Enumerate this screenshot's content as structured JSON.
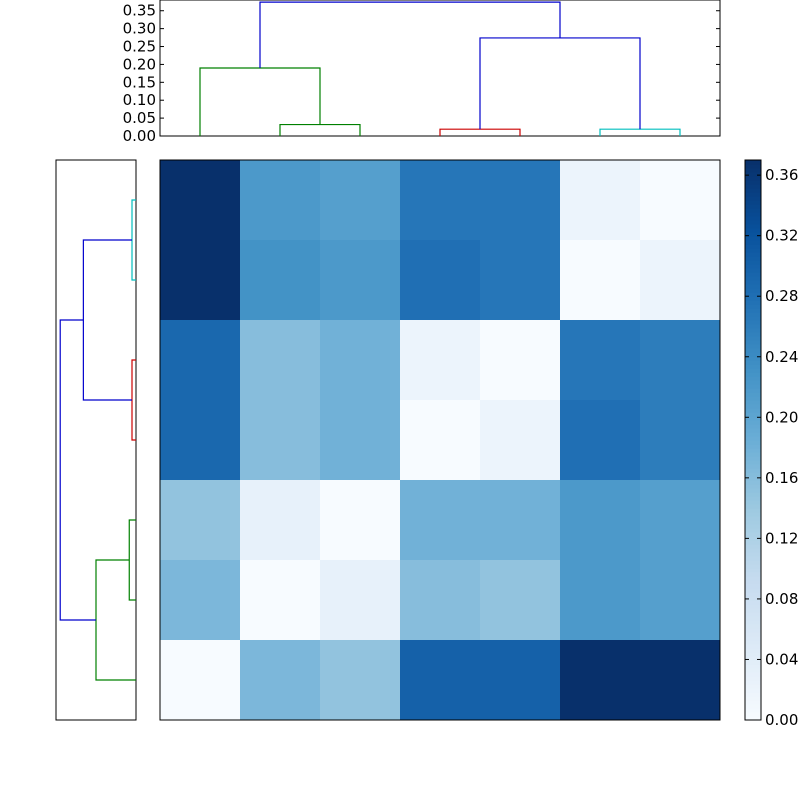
{
  "colors": {
    "dendrogram_link_colors": [
      "#0000cc",
      "#008000",
      "#cc0000",
      "#00bfbf"
    ],
    "cmap_low": "#f7fbff",
    "cmap_high": "#08306b"
  },
  "chart_data": [
    {
      "type": "heatmap",
      "title": "",
      "colormap": "Blues",
      "vmin": 0.0,
      "vmax": 0.37,
      "matrix": [
        [
          0.37,
          0.22,
          0.21,
          0.27,
          0.27,
          0.02,
          0.0
        ],
        [
          0.37,
          0.23,
          0.22,
          0.28,
          0.27,
          0.0,
          0.02
        ],
        [
          0.29,
          0.16,
          0.18,
          0.02,
          0.0,
          0.27,
          0.26
        ],
        [
          0.29,
          0.16,
          0.18,
          0.0,
          0.02,
          0.28,
          0.26
        ],
        [
          0.15,
          0.03,
          0.0,
          0.18,
          0.18,
          0.22,
          0.21
        ],
        [
          0.17,
          0.0,
          0.03,
          0.16,
          0.15,
          0.22,
          0.21
        ],
        [
          0.0,
          0.17,
          0.15,
          0.3,
          0.3,
          0.37,
          0.37
        ]
      ],
      "colorbar": {
        "ticks": [
          "0.00",
          "0.04",
          "0.08",
          "0.12",
          "0.16",
          "0.20",
          "0.24",
          "0.28",
          "0.32",
          "0.36"
        ],
        "tick_values": [
          0.0,
          0.04,
          0.08,
          0.12,
          0.16,
          0.2,
          0.24,
          0.28,
          0.32,
          0.36
        ]
      },
      "xlabel": "",
      "ylabel": ""
    },
    {
      "type": "line",
      "subtype": "dendrogram",
      "orientation": "top",
      "ylim": [
        0,
        0.38
      ],
      "yticks": [
        "0.00",
        "0.05",
        "0.10",
        "0.15",
        "0.20",
        "0.25",
        "0.30",
        "0.35"
      ],
      "ytick_values": [
        0.0,
        0.05,
        0.1,
        0.15,
        0.2,
        0.25,
        0.3,
        0.35
      ],
      "links": [
        {
          "left": 1.5,
          "right": 2.5,
          "h_left": 0.0,
          "h_right": 0.0,
          "height": 0.032,
          "color": "#008000"
        },
        {
          "left": 0.5,
          "right": 2.0,
          "h_left": 0.0,
          "h_right": 0.032,
          "height": 0.19,
          "color": "#008000"
        },
        {
          "left": 3.5,
          "right": 4.5,
          "h_left": 0.0,
          "h_right": 0.0,
          "height": 0.019,
          "color": "#cc0000"
        },
        {
          "left": 5.5,
          "right": 6.5,
          "h_left": 0.0,
          "h_right": 0.0,
          "height": 0.019,
          "color": "#00bfbf"
        },
        {
          "left": 4.0,
          "right": 6.0,
          "h_left": 0.019,
          "h_right": 0.019,
          "height": 0.274,
          "color": "#0000cc"
        },
        {
          "left": 1.25,
          "right": 5.0,
          "h_left": 0.19,
          "h_right": 0.274,
          "height": 0.374,
          "color": "#0000cc"
        }
      ]
    },
    {
      "type": "line",
      "subtype": "dendrogram",
      "orientation": "left",
      "links": [
        {
          "left": 0.5,
          "right": 1.5,
          "h_left": 0.0,
          "h_right": 0.0,
          "height": 0.019,
          "color": "#00bfbf"
        },
        {
          "left": 2.5,
          "right": 3.5,
          "h_left": 0.0,
          "h_right": 0.0,
          "height": 0.019,
          "color": "#cc0000"
        },
        {
          "left": 1.0,
          "right": 3.0,
          "h_left": 0.019,
          "h_right": 0.019,
          "height": 0.25,
          "color": "#0000cc"
        },
        {
          "left": 4.5,
          "right": 5.5,
          "h_left": 0.0,
          "h_right": 0.0,
          "height": 0.032,
          "color": "#008000"
        },
        {
          "left": 5.0,
          "right": 6.5,
          "h_left": 0.032,
          "h_right": 0.0,
          "height": 0.19,
          "color": "#008000"
        },
        {
          "left": 2.0,
          "right": 5.75,
          "h_left": 0.25,
          "h_right": 0.19,
          "height": 0.36,
          "color": "#0000cc"
        }
      ],
      "xlim": [
        0,
        0.38
      ]
    }
  ]
}
